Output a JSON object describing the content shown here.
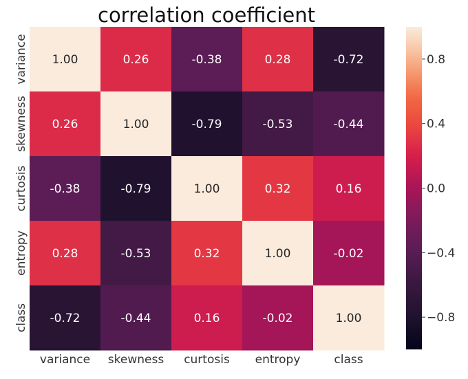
{
  "chart_data": {
    "type": "heatmap",
    "title": "correlation coefficient",
    "x_labels": [
      "variance",
      "skewness",
      "curtosis",
      "entropy",
      "class"
    ],
    "y_labels": [
      "variance",
      "skewness",
      "curtosis",
      "entropy",
      "class"
    ],
    "values": [
      [
        1.0,
        0.26,
        -0.38,
        0.28,
        -0.72
      ],
      [
        0.26,
        1.0,
        -0.79,
        -0.53,
        -0.44
      ],
      [
        -0.38,
        -0.79,
        1.0,
        0.32,
        0.16
      ],
      [
        0.28,
        -0.53,
        0.32,
        1.0,
        -0.02
      ],
      [
        -0.72,
        -0.44,
        0.16,
        -0.02,
        1.0
      ]
    ],
    "value_format": "0.00",
    "colormap": "rocket",
    "vmin": -1,
    "vmax": 1,
    "colorbar_ticks": [
      0.8,
      0.4,
      0.0,
      -0.4,
      -0.8
    ],
    "colorbar_tick_labels": [
      "0.8",
      "0.4",
      "0.0",
      "−0.4",
      "−0.8"
    ]
  }
}
